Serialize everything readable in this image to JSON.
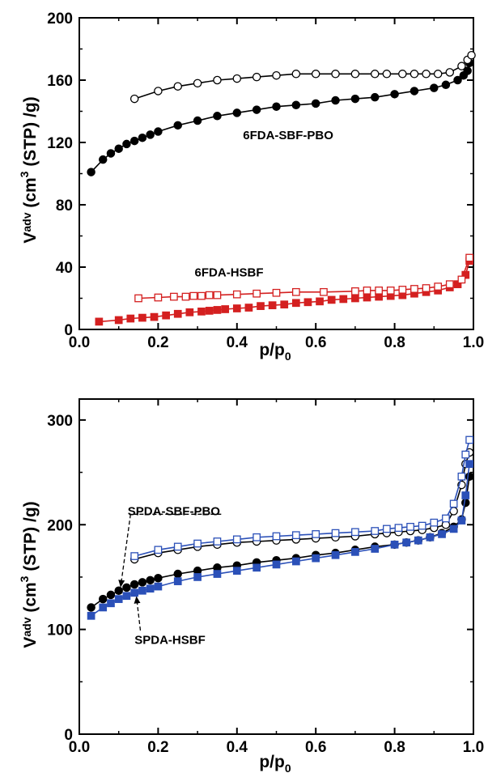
{
  "chart_data": [
    {
      "type": "scatter",
      "title": "",
      "xlabel": "p/p0",
      "xlabel_main": "p/p",
      "xlabel_sub": "0",
      "ylabel": "Vadv (cm3 (STP) /g)",
      "ylabel_parts": {
        "v": "V",
        "v_sub": "adv",
        "mid": " (cm",
        "sup": "3",
        "end": " (STP) /g)"
      },
      "xlim": [
        0.0,
        1.0
      ],
      "ylim": [
        0,
        200
      ],
      "xticks": [
        "0.0",
        "0.2",
        "0.4",
        "0.6",
        "0.8",
        "1.0"
      ],
      "yticks": [
        "0",
        "40",
        "80",
        "120",
        "160",
        "200"
      ],
      "grid": false,
      "annotations": [
        {
          "text": "6FDA-SBF-PBO",
          "x": 0.53,
          "y": 122
        },
        {
          "text": "6FDA-HSBF",
          "x": 0.38,
          "y": 34
        }
      ],
      "series": [
        {
          "marker": "circle-filled",
          "color": "#000000",
          "x": [
            0.03,
            0.06,
            0.08,
            0.1,
            0.12,
            0.14,
            0.16,
            0.18,
            0.2,
            0.25,
            0.3,
            0.35,
            0.4,
            0.45,
            0.5,
            0.55,
            0.6,
            0.65,
            0.7,
            0.75,
            0.8,
            0.85,
            0.9,
            0.93,
            0.96,
            0.975,
            0.985,
            0.99
          ],
          "y": [
            101,
            109,
            113,
            116,
            119,
            121,
            123,
            125,
            127,
            131,
            134,
            137,
            139,
            141,
            143,
            144,
            145,
            147,
            148,
            149,
            151,
            153,
            155,
            157,
            160,
            163,
            166,
            171
          ]
        },
        {
          "marker": "circle-open",
          "color": "#000000",
          "x": [
            0.14,
            0.2,
            0.25,
            0.3,
            0.35,
            0.4,
            0.45,
            0.5,
            0.55,
            0.6,
            0.65,
            0.7,
            0.75,
            0.78,
            0.82,
            0.85,
            0.88,
            0.91,
            0.94,
            0.97,
            0.985,
            0.995
          ],
          "y": [
            148,
            153,
            156,
            158,
            160,
            161,
            162,
            163,
            164,
            164,
            164,
            164,
            164,
            164,
            164,
            164,
            164,
            164,
            165,
            169,
            173,
            176
          ]
        },
        {
          "marker": "square-filled",
          "color": "#d42020",
          "x": [
            0.05,
            0.1,
            0.13,
            0.16,
            0.19,
            0.22,
            0.25,
            0.28,
            0.31,
            0.33,
            0.35,
            0.37,
            0.4,
            0.43,
            0.46,
            0.49,
            0.52,
            0.55,
            0.58,
            0.61,
            0.64,
            0.67,
            0.7,
            0.73,
            0.76,
            0.79,
            0.82,
            0.85,
            0.88,
            0.91,
            0.94,
            0.96,
            0.98,
            0.99
          ],
          "y": [
            5,
            6,
            7,
            7.5,
            8,
            9,
            10,
            11,
            11.5,
            12,
            12.5,
            13,
            13.5,
            14,
            15,
            15.5,
            16,
            17,
            17.5,
            18,
            19,
            19.5,
            20,
            20.5,
            21,
            21.5,
            22,
            23,
            24,
            25,
            27,
            29,
            35,
            44
          ]
        },
        {
          "marker": "square-open",
          "color": "#d42020",
          "x": [
            0.15,
            0.2,
            0.24,
            0.27,
            0.29,
            0.31,
            0.33,
            0.35,
            0.4,
            0.45,
            0.5,
            0.55,
            0.62,
            0.7,
            0.73,
            0.76,
            0.79,
            0.82,
            0.85,
            0.88,
            0.91,
            0.94,
            0.97,
            0.99
          ],
          "y": [
            20,
            20.5,
            21,
            21,
            21.5,
            21.5,
            22,
            22,
            22.5,
            23,
            23.5,
            24,
            24,
            24.5,
            25,
            25,
            25,
            25.5,
            26,
            26.5,
            27.5,
            29,
            32,
            46
          ]
        }
      ]
    },
    {
      "type": "scatter",
      "title": "",
      "xlabel": "p/p0",
      "xlabel_main": "p/p",
      "xlabel_sub": "0",
      "ylabel": "Vadv (cm3 (STP) /g)",
      "ylabel_parts": {
        "v": "V",
        "v_sub": "adv",
        "mid": " (cm",
        "sup": "3",
        "end": " (STP) /g)"
      },
      "xlim": [
        0.0,
        1.0
      ],
      "ylim": [
        0,
        320
      ],
      "xticks": [
        "0.0",
        "0.2",
        "0.4",
        "0.6",
        "0.8",
        "1.0"
      ],
      "yticks": [
        "0",
        "100",
        "200",
        "300"
      ],
      "grid": false,
      "annotations": [
        {
          "text": "SPDA-SBF-PBO",
          "x": 0.24,
          "y": 209
        },
        {
          "text": "SPDA-HSBF",
          "x": 0.23,
          "y": 86
        }
      ],
      "arrows": [
        {
          "from": [
            0.36,
            210
          ],
          "via": [
            0.13,
            210
          ],
          "to": [
            0.105,
            141
          ]
        },
        {
          "from": [
            0.155,
            99
          ],
          "to": [
            0.145,
            131
          ]
        }
      ],
      "series": [
        {
          "marker": "circle-filled",
          "color": "#000000",
          "x": [
            0.03,
            0.06,
            0.08,
            0.1,
            0.12,
            0.14,
            0.16,
            0.18,
            0.2,
            0.25,
            0.3,
            0.35,
            0.4,
            0.45,
            0.5,
            0.55,
            0.6,
            0.65,
            0.7,
            0.75,
            0.8,
            0.83,
            0.86,
            0.89,
            0.92,
            0.95,
            0.97,
            0.98,
            0.99
          ],
          "y": [
            121,
            129,
            133,
            137,
            140,
            143,
            145,
            147,
            149,
            153,
            156,
            159,
            161,
            164,
            166,
            168,
            171,
            173,
            176,
            179,
            181,
            183,
            185,
            188,
            192,
            198,
            205,
            221,
            246
          ]
        },
        {
          "marker": "circle-open",
          "color": "#000000",
          "x": [
            0.14,
            0.2,
            0.25,
            0.3,
            0.35,
            0.4,
            0.45,
            0.5,
            0.55,
            0.6,
            0.65,
            0.7,
            0.75,
            0.78,
            0.81,
            0.84,
            0.87,
            0.9,
            0.93,
            0.95,
            0.97,
            0.98,
            0.99
          ],
          "y": [
            167,
            173,
            176,
            179,
            181,
            183,
            184,
            185,
            186,
            187,
            188,
            189,
            191,
            192,
            193,
            194,
            195,
            197,
            200,
            213,
            238,
            258,
            269
          ]
        },
        {
          "marker": "square-filled",
          "color": "#2b50b8",
          "x": [
            0.03,
            0.06,
            0.08,
            0.1,
            0.12,
            0.14,
            0.16,
            0.18,
            0.2,
            0.25,
            0.3,
            0.35,
            0.4,
            0.45,
            0.5,
            0.55,
            0.6,
            0.65,
            0.7,
            0.75,
            0.8,
            0.83,
            0.86,
            0.89,
            0.92,
            0.95,
            0.97,
            0.98,
            0.99
          ],
          "y": [
            113,
            121,
            125,
            129,
            132,
            135,
            137,
            139,
            141,
            146,
            150,
            153,
            156,
            159,
            162,
            165,
            168,
            171,
            174,
            177,
            181,
            183,
            185,
            188,
            191,
            196,
            204,
            228,
            258
          ]
        },
        {
          "marker": "square-open",
          "color": "#2b50b8",
          "x": [
            0.14,
            0.2,
            0.25,
            0.3,
            0.35,
            0.4,
            0.45,
            0.5,
            0.55,
            0.6,
            0.65,
            0.7,
            0.75,
            0.78,
            0.81,
            0.84,
            0.87,
            0.9,
            0.93,
            0.95,
            0.97,
            0.98,
            0.99
          ],
          "y": [
            170,
            176,
            179,
            182,
            184,
            186,
            188,
            189,
            190,
            191,
            192,
            193,
            194,
            196,
            197,
            198,
            199,
            202,
            206,
            220,
            246,
            267,
            281
          ]
        }
      ]
    }
  ]
}
